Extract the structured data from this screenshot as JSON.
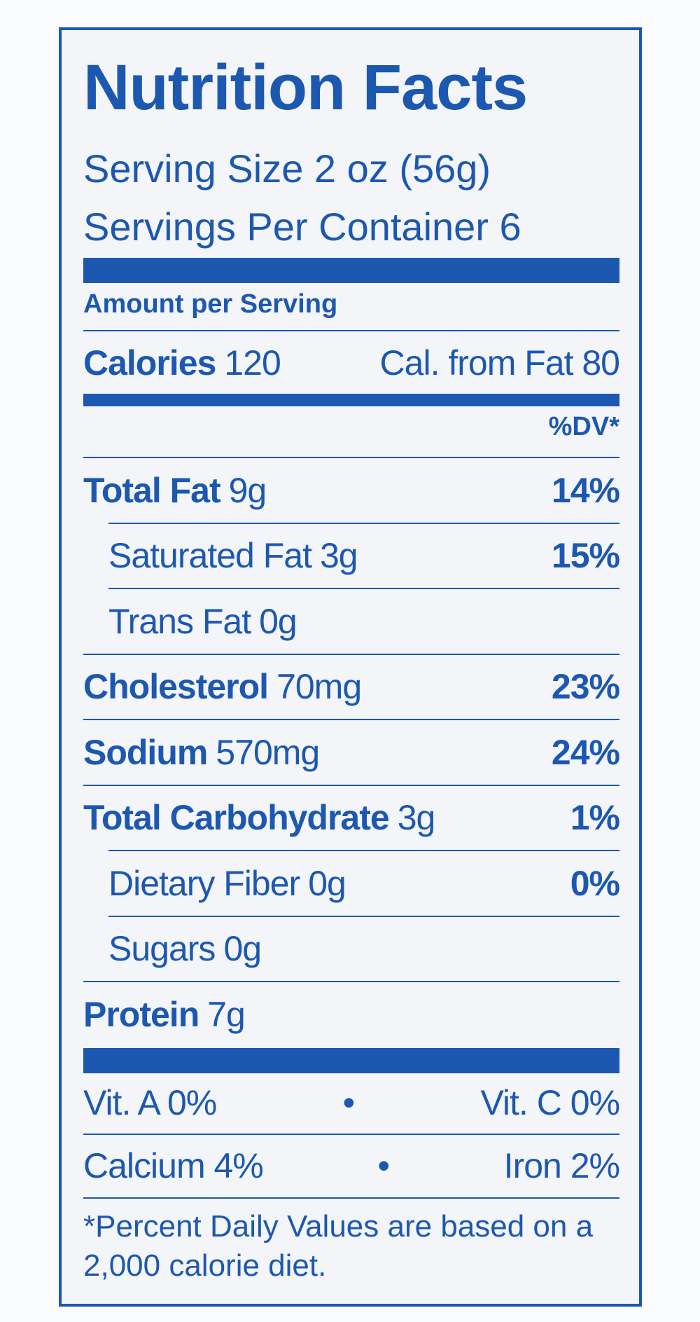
{
  "header": {
    "title": "Nutrition Facts",
    "serving_size": "Serving Size 2 oz (56g)",
    "servings_per_container": "Servings Per Container 6"
  },
  "amount_per_serving": "Amount per Serving",
  "calories": {
    "label": "Calories",
    "value": "120",
    "from_fat": "Cal. from Fat 80"
  },
  "dv_header": "%DV*",
  "nutrients": [
    {
      "name": "Total Fat",
      "amount": "9g",
      "dv": "14%"
    },
    {
      "name": "Saturated Fat",
      "amount": "3g",
      "dv": "15%"
    },
    {
      "name": "Trans Fat",
      "amount": "0g"
    },
    {
      "name": "Cholesterol",
      "amount": "70mg",
      "dv": "23%"
    },
    {
      "name": "Sodium",
      "amount": "570mg",
      "dv": "24%"
    },
    {
      "name": "Total Carbohydrate",
      "amount": "3g",
      "dv": "1%"
    },
    {
      "name": "Dietary Fiber",
      "amount": "0g",
      "dv": "0%"
    },
    {
      "name": "Sugars",
      "amount": "0g"
    },
    {
      "name": "Protein",
      "amount": "7g"
    }
  ],
  "vitamins": [
    [
      "Vit. A 0%",
      "Vit. C 0%"
    ],
    [
      "Calcium 4%",
      "Iron 2%"
    ]
  ],
  "footnote": "*Percent Daily Values are based on a 2,000 calorie diet."
}
